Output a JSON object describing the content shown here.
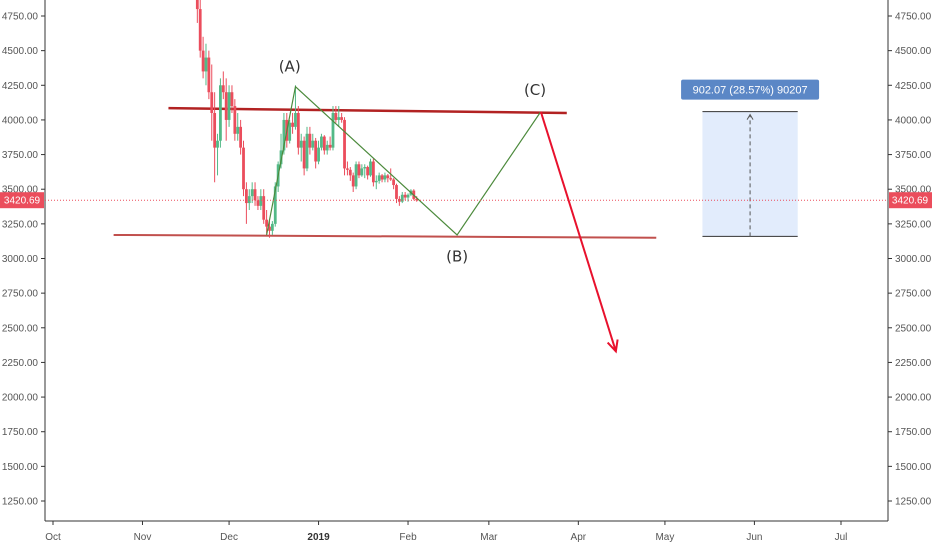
{
  "chart_data": {
    "type": "candlestick",
    "symbol_price_label": "3420.69",
    "current_price": 3420.69,
    "y_ticks": [
      "4750.00",
      "4500.00",
      "4250.00",
      "4000.00",
      "3750.00",
      "3500.00",
      "3250.00",
      "3000.00",
      "2750.00",
      "2500.00",
      "2250.00",
      "2000.00",
      "1750.00",
      "1500.00",
      "1250.00"
    ],
    "y_tick_values": [
      4750,
      4500,
      4250,
      4000,
      3750,
      3500,
      3250,
      3000,
      2750,
      2500,
      2250,
      2000,
      1750,
      1500,
      1250
    ],
    "x_ticks": [
      {
        "label": "Oct",
        "date": "2018-10-01",
        "bold": false
      },
      {
        "label": "Nov",
        "date": "2018-11-01",
        "bold": false
      },
      {
        "label": "Dec",
        "date": "2018-12-01",
        "bold": false
      },
      {
        "label": "2019",
        "date": "2019-01-01",
        "bold": true
      },
      {
        "label": "Feb",
        "date": "2019-02-01",
        "bold": false
      },
      {
        "label": "Mar",
        "date": "2019-03-01",
        "bold": false
      },
      {
        "label": "Apr",
        "date": "2019-04-01",
        "bold": false
      },
      {
        "label": "May",
        "date": "2019-05-01",
        "bold": false
      },
      {
        "label": "Jun",
        "date": "2019-06-01",
        "bold": false
      },
      {
        "label": "Jul",
        "date": "2019-07-01",
        "bold": false
      }
    ],
    "candles": [
      {
        "date": "2018-11-20",
        "o": 4950,
        "h": 5000,
        "l": 4700,
        "c": 4800
      },
      {
        "date": "2018-11-21",
        "o": 4800,
        "h": 4900,
        "l": 4450,
        "c": 4500
      },
      {
        "date": "2018-11-22",
        "o": 4500,
        "h": 4600,
        "l": 4300,
        "c": 4350
      },
      {
        "date": "2018-11-23",
        "o": 4350,
        "h": 4550,
        "l": 4250,
        "c": 4450
      },
      {
        "date": "2018-11-24",
        "o": 4450,
        "h": 4500,
        "l": 4150,
        "c": 4200
      },
      {
        "date": "2018-11-25",
        "o": 4200,
        "h": 4400,
        "l": 3850,
        "c": 4050
      },
      {
        "date": "2018-11-26",
        "o": 4050,
        "h": 4200,
        "l": 3550,
        "c": 3800
      },
      {
        "date": "2018-11-27",
        "o": 3800,
        "h": 3900,
        "l": 3600,
        "c": 3850
      },
      {
        "date": "2018-11-28",
        "o": 3850,
        "h": 4300,
        "l": 3800,
        "c": 4250
      },
      {
        "date": "2018-11-29",
        "o": 4250,
        "h": 4350,
        "l": 4150,
        "c": 4200
      },
      {
        "date": "2018-11-30",
        "o": 4200,
        "h": 4300,
        "l": 3850,
        "c": 4000
      },
      {
        "date": "2018-12-01",
        "o": 4000,
        "h": 4250,
        "l": 3950,
        "c": 4200
      },
      {
        "date": "2018-12-02",
        "o": 4200,
        "h": 4250,
        "l": 4050,
        "c": 4100
      },
      {
        "date": "2018-12-03",
        "o": 4100,
        "h": 4150,
        "l": 3850,
        "c": 3900
      },
      {
        "date": "2018-12-04",
        "o": 3900,
        "h": 4050,
        "l": 3850,
        "c": 3950
      },
      {
        "date": "2018-12-05",
        "o": 3950,
        "h": 4000,
        "l": 3750,
        "c": 3800
      },
      {
        "date": "2018-12-06",
        "o": 3800,
        "h": 3850,
        "l": 3450,
        "c": 3500
      },
      {
        "date": "2018-12-07",
        "o": 3500,
        "h": 3550,
        "l": 3250,
        "c": 3400
      },
      {
        "date": "2018-12-08",
        "o": 3400,
        "h": 3500,
        "l": 3350,
        "c": 3450
      },
      {
        "date": "2018-12-09",
        "o": 3450,
        "h": 3550,
        "l": 3400,
        "c": 3500
      },
      {
        "date": "2018-12-10",
        "o": 3500,
        "h": 3550,
        "l": 3380,
        "c": 3420
      },
      {
        "date": "2018-12-11",
        "o": 3420,
        "h": 3450,
        "l": 3350,
        "c": 3380
      },
      {
        "date": "2018-12-12",
        "o": 3380,
        "h": 3500,
        "l": 3350,
        "c": 3450
      },
      {
        "date": "2018-12-13",
        "o": 3450,
        "h": 3500,
        "l": 3250,
        "c": 3280
      },
      {
        "date": "2018-12-14",
        "o": 3280,
        "h": 3350,
        "l": 3180,
        "c": 3230
      },
      {
        "date": "2018-12-15",
        "o": 3230,
        "h": 3270,
        "l": 3150,
        "c": 3200
      },
      {
        "date": "2018-12-16",
        "o": 3200,
        "h": 3270,
        "l": 3170,
        "c": 3250
      },
      {
        "date": "2018-12-17",
        "o": 3250,
        "h": 3550,
        "l": 3230,
        "c": 3520
      },
      {
        "date": "2018-12-18",
        "o": 3520,
        "h": 3700,
        "l": 3480,
        "c": 3680
      },
      {
        "date": "2018-12-19",
        "o": 3680,
        "h": 3900,
        "l": 3650,
        "c": 3780
      },
      {
        "date": "2018-12-20",
        "o": 3780,
        "h": 4050,
        "l": 3750,
        "c": 4000
      },
      {
        "date": "2018-12-21",
        "o": 4000,
        "h": 4050,
        "l": 3800,
        "c": 3850
      },
      {
        "date": "2018-12-22",
        "o": 3850,
        "h": 4000,
        "l": 3830,
        "c": 3980
      },
      {
        "date": "2018-12-23",
        "o": 3980,
        "h": 4050,
        "l": 3900,
        "c": 3950
      },
      {
        "date": "2018-12-24",
        "o": 3950,
        "h": 4250,
        "l": 3930,
        "c": 4050
      },
      {
        "date": "2018-12-25",
        "o": 4050,
        "h": 4100,
        "l": 3750,
        "c": 3800
      },
      {
        "date": "2018-12-26",
        "o": 3800,
        "h": 3900,
        "l": 3700,
        "c": 3850
      },
      {
        "date": "2018-12-27",
        "o": 3850,
        "h": 3880,
        "l": 3600,
        "c": 3650
      },
      {
        "date": "2018-12-28",
        "o": 3650,
        "h": 3950,
        "l": 3630,
        "c": 3900
      },
      {
        "date": "2018-12-29",
        "o": 3900,
        "h": 3950,
        "l": 3750,
        "c": 3800
      },
      {
        "date": "2018-12-30",
        "o": 3800,
        "h": 3900,
        "l": 3780,
        "c": 3850
      },
      {
        "date": "2018-12-31",
        "o": 3850,
        "h": 3870,
        "l": 3650,
        "c": 3700
      },
      {
        "date": "2019-01-01",
        "o": 3700,
        "h": 3850,
        "l": 3680,
        "c": 3800
      },
      {
        "date": "2019-01-02",
        "o": 3800,
        "h": 3900,
        "l": 3780,
        "c": 3880
      },
      {
        "date": "2019-01-03",
        "o": 3880,
        "h": 3890,
        "l": 3750,
        "c": 3780
      },
      {
        "date": "2019-01-04",
        "o": 3780,
        "h": 3850,
        "l": 3750,
        "c": 3820
      },
      {
        "date": "2019-01-05",
        "o": 3820,
        "h": 3880,
        "l": 3780,
        "c": 3800
      },
      {
        "date": "2019-01-06",
        "o": 3800,
        "h": 4100,
        "l": 3780,
        "c": 4050
      },
      {
        "date": "2019-01-07",
        "o": 4050,
        "h": 4100,
        "l": 3980,
        "c": 4000
      },
      {
        "date": "2019-01-08",
        "o": 4000,
        "h": 4100,
        "l": 3950,
        "c": 4020
      },
      {
        "date": "2019-01-09",
        "o": 4020,
        "h": 4050,
        "l": 3980,
        "c": 4000
      },
      {
        "date": "2019-01-10",
        "o": 4000,
        "h": 4020,
        "l": 3600,
        "c": 3650
      },
      {
        "date": "2019-01-11",
        "o": 3650,
        "h": 3700,
        "l": 3600,
        "c": 3640
      },
      {
        "date": "2019-01-12",
        "o": 3640,
        "h": 3660,
        "l": 3560,
        "c": 3600
      },
      {
        "date": "2019-01-13",
        "o": 3600,
        "h": 3620,
        "l": 3480,
        "c": 3520
      },
      {
        "date": "2019-01-14",
        "o": 3520,
        "h": 3700,
        "l": 3500,
        "c": 3680
      },
      {
        "date": "2019-01-15",
        "o": 3680,
        "h": 3700,
        "l": 3580,
        "c": 3600
      },
      {
        "date": "2019-01-16",
        "o": 3600,
        "h": 3680,
        "l": 3590,
        "c": 3650
      },
      {
        "date": "2019-01-17",
        "o": 3650,
        "h": 3680,
        "l": 3580,
        "c": 3660
      },
      {
        "date": "2019-01-18",
        "o": 3660,
        "h": 3670,
        "l": 3570,
        "c": 3600
      },
      {
        "date": "2019-01-19",
        "o": 3600,
        "h": 3720,
        "l": 3590,
        "c": 3700
      },
      {
        "date": "2019-01-20",
        "o": 3700,
        "h": 3720,
        "l": 3520,
        "c": 3550
      },
      {
        "date": "2019-01-21",
        "o": 3550,
        "h": 3600,
        "l": 3500,
        "c": 3560
      },
      {
        "date": "2019-01-22",
        "o": 3560,
        "h": 3620,
        "l": 3540,
        "c": 3600
      },
      {
        "date": "2019-01-23",
        "o": 3600,
        "h": 3610,
        "l": 3550,
        "c": 3570
      },
      {
        "date": "2019-01-24",
        "o": 3570,
        "h": 3620,
        "l": 3550,
        "c": 3600
      },
      {
        "date": "2019-01-25",
        "o": 3600,
        "h": 3610,
        "l": 3550,
        "c": 3580
      },
      {
        "date": "2019-01-26",
        "o": 3580,
        "h": 3650,
        "l": 3560,
        "c": 3570
      },
      {
        "date": "2019-01-27",
        "o": 3570,
        "h": 3580,
        "l": 3500,
        "c": 3530
      },
      {
        "date": "2019-01-28",
        "o": 3530,
        "h": 3540,
        "l": 3400,
        "c": 3430
      },
      {
        "date": "2019-01-29",
        "o": 3430,
        "h": 3450,
        "l": 3380,
        "c": 3410
      },
      {
        "date": "2019-01-30",
        "o": 3410,
        "h": 3480,
        "l": 3400,
        "c": 3460
      },
      {
        "date": "2019-01-31",
        "o": 3460,
        "h": 3480,
        "l": 3420,
        "c": 3440
      },
      {
        "date": "2019-02-01",
        "o": 3440,
        "h": 3470,
        "l": 3410,
        "c": 3460
      },
      {
        "date": "2019-02-02",
        "o": 3460,
        "h": 3500,
        "l": 3450,
        "c": 3490
      },
      {
        "date": "2019-02-03",
        "o": 3490,
        "h": 3500,
        "l": 3420,
        "c": 3430
      },
      {
        "date": "2019-02-04",
        "o": 3430,
        "h": 3450,
        "l": 3410,
        "c": 3420
      }
    ],
    "resistance_line": {
      "p1": {
        "date": "2018-11-10",
        "price": 4085
      },
      "p2": {
        "date": "2019-03-28",
        "price": 4050
      }
    },
    "support_line": {
      "p1": {
        "date": "2018-10-22",
        "price": 3170
      },
      "p2": {
        "date": "2019-04-28",
        "price": 3150
      }
    },
    "wave_path": [
      {
        "date": "2018-12-14",
        "price": 3170
      },
      {
        "date": "2018-12-24",
        "price": 4240
      },
      {
        "date": "2019-02-18",
        "price": 3170
      },
      {
        "date": "2019-03-19",
        "price": 4060
      }
    ],
    "projection_arrow": {
      "from": {
        "date": "2019-03-19",
        "price": 4060
      },
      "to": {
        "date": "2019-04-14",
        "price": 2330
      }
    },
    "wave_labels": [
      {
        "text": "(A)",
        "date": "2018-12-22",
        "price": 4350
      },
      {
        "text": "(B)",
        "date": "2019-02-18",
        "price": 2980
      },
      {
        "text": "(C)",
        "date": "2019-03-17",
        "price": 4180
      }
    ],
    "measure": {
      "label": "902.07 (28.57%) 90207",
      "from_date": "2019-05-14",
      "to_date": "2019-06-16",
      "low": 3160,
      "high": 4060
    }
  },
  "colors": {
    "up": "#53b987",
    "down": "#eb4d5c",
    "resistance": "#b22222",
    "support": "#c1504d",
    "wave": "#4c8a3c",
    "arrow": "#e8112d",
    "price_tag": "#eb4d5c",
    "measure_fill": "#dde9fb",
    "measure_label": "#5b87c6",
    "axis": "#555555",
    "grid": "#f0f3fa"
  }
}
